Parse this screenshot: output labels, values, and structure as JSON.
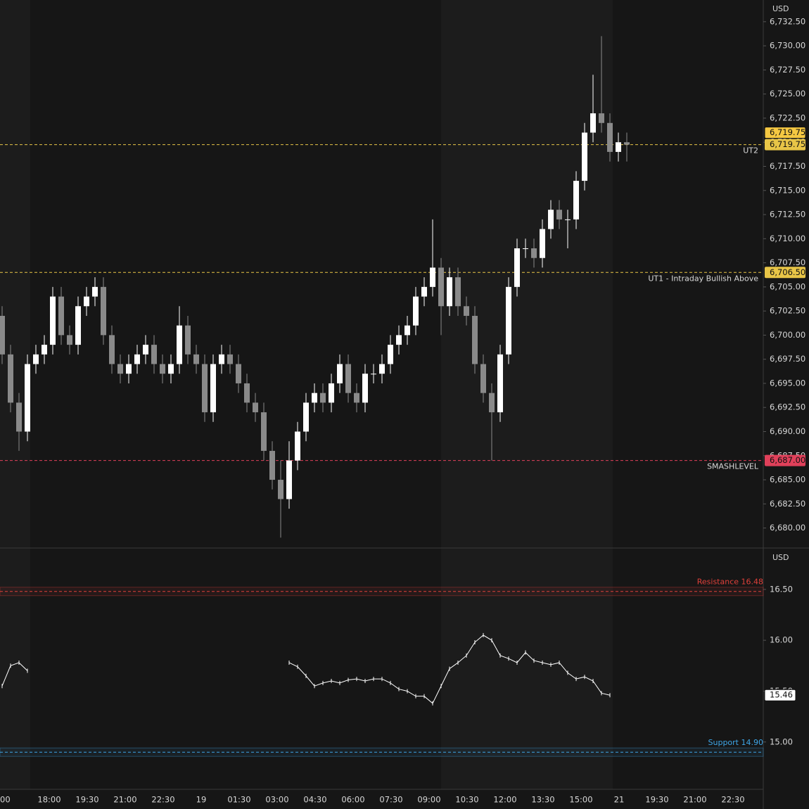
{
  "chart_data": [
    {
      "type": "candlestick",
      "currency": "USD",
      "up_color": "#ffffff",
      "down_color": "#8a8a8a",
      "open": [
        6702,
        6698,
        6693,
        6690,
        6697,
        6698,
        6699,
        6704,
        6700,
        6699,
        6703,
        6704,
        6705,
        6700,
        6697,
        6696,
        6697,
        6698,
        6699,
        6697,
        6696,
        6697,
        6701,
        6698,
        6697,
        6692,
        6697,
        6698,
        6697,
        6695,
        6693,
        6692,
        6688,
        6685,
        6683,
        6687,
        6690,
        6693,
        6694,
        6693,
        6695,
        6697,
        6694,
        6693,
        6696,
        6696,
        6697,
        6699,
        6700,
        6701,
        6704,
        6705,
        6707,
        6703,
        6706,
        6703,
        6702,
        6697,
        6694,
        6692,
        6698,
        6705,
        6709,
        6709,
        6708,
        6711,
        6713,
        6712,
        6712,
        6716,
        6721,
        6723,
        6722,
        6719,
        6720
      ],
      "high": [
        6703,
        6699,
        6694,
        6698,
        6699,
        6700,
        6705,
        6705,
        6701,
        6704,
        6705,
        6706,
        6706,
        6701,
        6698,
        6698,
        6699,
        6700,
        6700,
        6698,
        6698,
        6703,
        6702,
        6699,
        6698,
        6698,
        6699,
        6699,
        6698,
        6696,
        6694,
        6693,
        6689,
        6687,
        6689,
        6691,
        6694,
        6695,
        6695,
        6696,
        6698,
        6698,
        6695,
        6697,
        6697,
        6698,
        6700,
        6701,
        6702,
        6705,
        6706,
        6712,
        6708,
        6707,
        6707,
        6704,
        6703,
        6698,
        6695,
        6699,
        6706,
        6710,
        6710,
        6710,
        6712,
        6714,
        6714,
        6713,
        6717,
        6722,
        6727,
        6731,
        6723,
        6721,
        6721
      ],
      "low": [
        6697,
        6692,
        6688,
        6689,
        6696,
        6697,
        6698,
        6699,
        6698,
        6698,
        6702,
        6703,
        6699,
        6696,
        6695,
        6695,
        6696,
        6697,
        6696,
        6695,
        6695,
        6696,
        6697,
        6696,
        6691,
        6691,
        6696,
        6696,
        6694,
        6692,
        6691,
        6687,
        6684,
        6679,
        6682,
        6686,
        6689,
        6692,
        6692,
        6692,
        6694,
        6693,
        6692,
        6692,
        6695,
        6695,
        6696,
        6698,
        6699,
        6700,
        6703,
        6704,
        6700,
        6702,
        6702,
        6701,
        6696,
        6693,
        6687,
        6691,
        6697,
        6704,
        6708,
        6707,
        6707,
        6710,
        6711,
        6709,
        6711,
        6715,
        6720,
        6721,
        6718,
        6718,
        6718
      ],
      "close": [
        6698,
        6693,
        6690,
        6697,
        6698,
        6699,
        6704,
        6700,
        6699,
        6703,
        6704,
        6705,
        6700,
        6697,
        6696,
        6697,
        6698,
        6699,
        6697,
        6696,
        6697,
        6701,
        6698,
        6697,
        6692,
        6697,
        6698,
        6697,
        6695,
        6693,
        6692,
        6688,
        6685,
        6683,
        6687,
        6690,
        6693,
        6694,
        6693,
        6695,
        6697,
        6694,
        6693,
        6696,
        6696,
        6697,
        6699,
        6700,
        6701,
        6704,
        6705,
        6707,
        6703,
        6706,
        6703,
        6702,
        6697,
        6694,
        6692,
        6698,
        6705,
        6709,
        6709,
        6708,
        6711,
        6713,
        6712,
        6712,
        6716,
        6721,
        6723,
        6722,
        6719,
        6720,
        6719.75
      ],
      "ylim": [
        6678,
        6734.75
      ],
      "yticks": [
        {
          "value": 6680,
          "label": "6,680.00"
        },
        {
          "value": 6682.5,
          "label": "6,682.50"
        },
        {
          "value": 6685,
          "label": "6,685.00"
        },
        {
          "value": 6687.5,
          "label": "6,687.50"
        },
        {
          "value": 6690,
          "label": "6,690.00"
        },
        {
          "value": 6692.5,
          "label": "6,692.50"
        },
        {
          "value": 6695,
          "label": "6,695.00"
        },
        {
          "value": 6697.5,
          "label": "6,697.50"
        },
        {
          "value": 6700,
          "label": "6,700.00"
        },
        {
          "value": 6702.5,
          "label": "6,702.50"
        },
        {
          "value": 6705,
          "label": "6,705.00"
        },
        {
          "value": 6707.5,
          "label": "6,707.50"
        },
        {
          "value": 6710,
          "label": "6,710.00"
        },
        {
          "value": 6712.5,
          "label": "6,712.50"
        },
        {
          "value": 6715,
          "label": "6,715.00"
        },
        {
          "value": 6717.5,
          "label": "6,717.50"
        },
        {
          "value": 6720,
          "label": "6,720.00"
        },
        {
          "value": 6722.5,
          "label": "6,722.50"
        },
        {
          "value": 6725,
          "label": "6,725.00"
        },
        {
          "value": 6727.5,
          "label": "6,727.50"
        },
        {
          "value": 6730,
          "label": "6,730.00"
        },
        {
          "value": 6732.5,
          "label": "6,732.50"
        }
      ],
      "levels": [
        {
          "name": "UT2",
          "value": 6719.75,
          "label": "6,719.75",
          "color": "#e8c547"
        },
        {
          "name": "UT1 - Intraday Bullish Above",
          "value": 6706.5,
          "label": "6,706.50",
          "color": "#e8c547"
        },
        {
          "name": "SMASHLEVEL",
          "value": 6687,
          "label": "6,687.00",
          "color": "#e0405a"
        }
      ],
      "last_price": {
        "value": 6719.75,
        "label": "6,719.75",
        "color": "#f5c842"
      }
    },
    {
      "type": "line",
      "currency": "USD",
      "color": "#ffffff",
      "values": [
        15.55,
        15.75,
        15.78,
        15.7,
        null,
        null,
        null,
        null,
        null,
        null,
        null,
        null,
        null,
        null,
        null,
        null,
        null,
        null,
        null,
        null,
        null,
        null,
        null,
        null,
        null,
        null,
        null,
        null,
        null,
        null,
        null,
        null,
        null,
        null,
        15.78,
        15.74,
        15.65,
        15.55,
        15.58,
        15.6,
        15.58,
        15.61,
        15.62,
        15.6,
        15.62,
        15.62,
        15.58,
        15.52,
        15.5,
        15.45,
        15.45,
        15.38,
        15.55,
        15.72,
        15.78,
        15.85,
        15.98,
        16.05,
        16.0,
        15.85,
        15.82,
        15.78,
        15.88,
        15.8,
        15.78,
        15.76,
        15.78,
        15.68,
        15.62,
        15.64,
        15.6,
        15.48,
        15.46,
        null,
        null
      ],
      "ylim": [
        14.535,
        16.9
      ],
      "yticks": [
        {
          "value": 15,
          "label": "15.00"
        },
        {
          "value": 15.5,
          "label": "15.50"
        },
        {
          "value": 16,
          "label": "16.00"
        },
        {
          "value": 16.5,
          "label": "16.50"
        }
      ],
      "levels": [
        {
          "name": "Resistance 16.48",
          "value": 16.48,
          "color": "#e0403a"
        },
        {
          "name": "Support 14.90",
          "value": 14.9,
          "color": "#3ea6e8"
        }
      ],
      "last_price": {
        "value": 15.46,
        "label": "15.46",
        "color": "#ffffff"
      }
    }
  ],
  "time_labels": [
    "00",
    "18:00",
    "19:30",
    "21:00",
    "22:30",
    "19",
    "01:30",
    "03:00",
    "04:30",
    "06:00",
    "07:30",
    "09:00",
    "10:30",
    "12:00",
    "13:30",
    "15:00",
    "21",
    "19:30",
    "21:00",
    "22:30"
  ]
}
